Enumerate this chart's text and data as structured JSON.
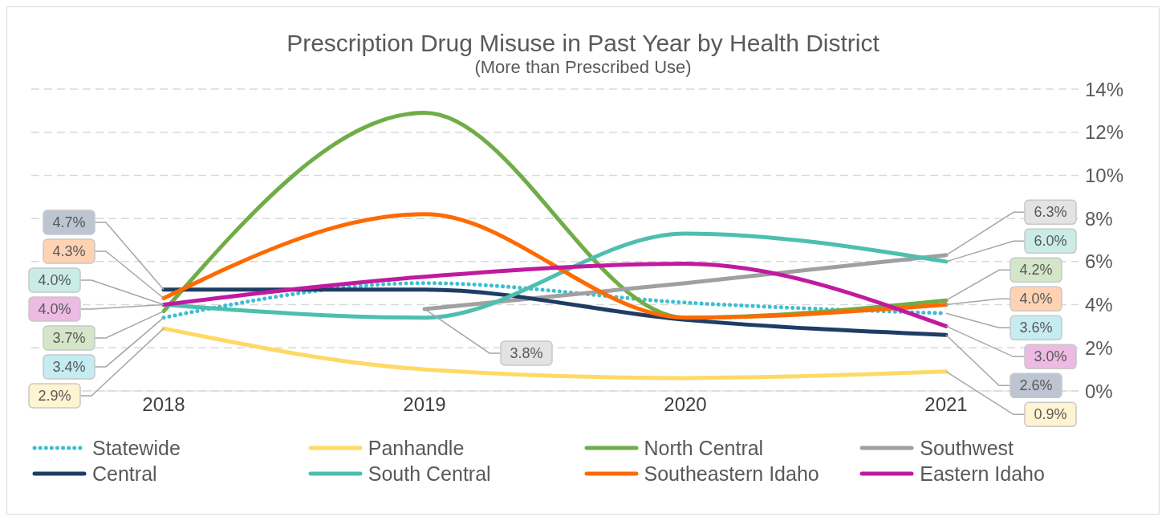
{
  "chart_data": {
    "type": "line",
    "title": "Prescription Drug Misuse in Past Year by Health District",
    "subtitle": "(More than Prescribed Use)",
    "categories": [
      "2018",
      "2019",
      "2020",
      "2021"
    ],
    "series": [
      {
        "name": "Statewide",
        "color": "#3bbfd0",
        "line_style": "dotted",
        "values": [
          3.4,
          5.0,
          4.1,
          3.6
        ],
        "value_labels": [
          "3.4%",
          null,
          null,
          "3.6%"
        ]
      },
      {
        "name": "Panhandle",
        "color": "#ffd966",
        "values": [
          2.9,
          1.0,
          0.6,
          0.9
        ],
        "value_labels": [
          "2.9%",
          null,
          null,
          "0.9%"
        ]
      },
      {
        "name": "North Central",
        "color": "#70ad47",
        "values": [
          3.7,
          12.9,
          3.4,
          4.2
        ],
        "value_labels": [
          "3.7%",
          null,
          null,
          "4.2%"
        ]
      },
      {
        "name": "Southwest",
        "color": "#a0a0a0",
        "values": [
          null,
          3.8,
          5.0,
          6.3
        ],
        "value_labels": [
          null,
          "3.8%",
          null,
          "6.3%"
        ]
      },
      {
        "name": "Central",
        "color": "#1f3c64",
        "values": [
          4.7,
          4.7,
          3.3,
          2.6
        ],
        "value_labels": [
          "4.7%",
          null,
          null,
          "2.6%"
        ]
      },
      {
        "name": "South Central",
        "color": "#4dbfae",
        "values": [
          4.0,
          3.4,
          7.3,
          6.0
        ],
        "value_labels": [
          "4.0%",
          null,
          null,
          "6.0%"
        ]
      },
      {
        "name": "Southeastern Idaho",
        "color": "#ff6a00",
        "values": [
          4.3,
          8.2,
          3.4,
          4.0
        ],
        "value_labels": [
          "4.3%",
          null,
          null,
          "4.0%"
        ]
      },
      {
        "name": "Eastern Idaho",
        "color": "#c01aa0",
        "values": [
          4.0,
          5.3,
          5.9,
          3.0
        ],
        "value_labels": [
          "4.0%",
          null,
          null,
          "3.0%"
        ]
      }
    ],
    "ylim": [
      0,
      14
    ],
    "yticks": [
      {
        "value": 0,
        "label": "0%"
      },
      {
        "value": 2,
        "label": "2%"
      },
      {
        "value": 4,
        "label": "4%"
      },
      {
        "value": 6,
        "label": "6%"
      },
      {
        "value": 8,
        "label": "8%"
      },
      {
        "value": 10,
        "label": "10%"
      },
      {
        "value": 12,
        "label": "12%"
      },
      {
        "value": 14,
        "label": "14%"
      }
    ],
    "grid": "y",
    "legend": "bottom",
    "line_style": "solid",
    "marker": "none"
  }
}
